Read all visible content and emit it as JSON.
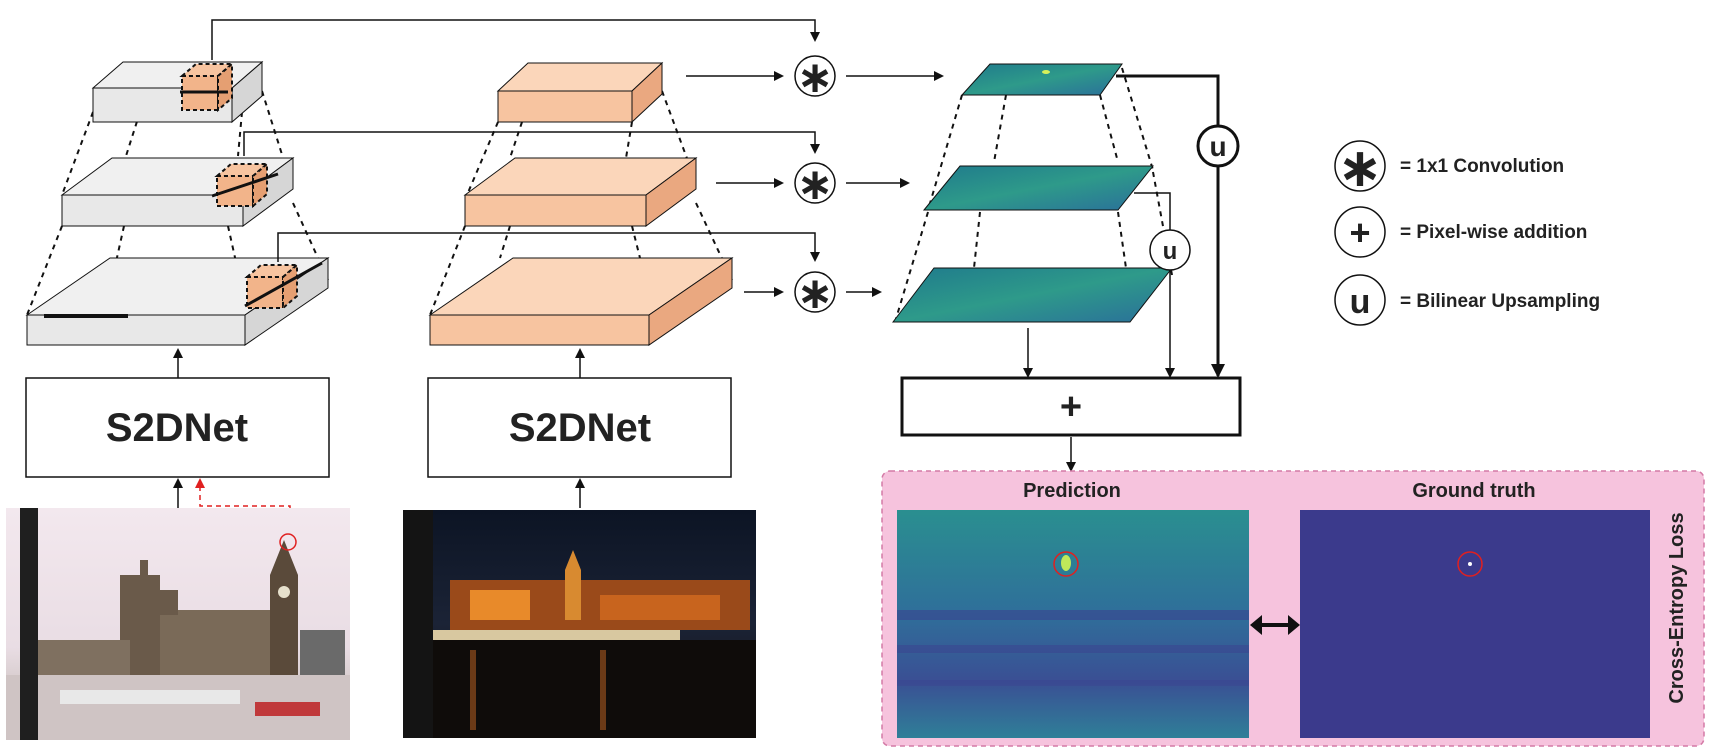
{
  "networks": [
    {
      "label": "S2DNet"
    },
    {
      "label": "S2DNet"
    }
  ],
  "symbols": {
    "conv": "∗",
    "add": "+",
    "upsample": "u"
  },
  "fusion_label": "+",
  "legend": [
    {
      "symbol": "∗",
      "name": "conv-legend",
      "text": "= 1x1 Convolution"
    },
    {
      "symbol": "+",
      "name": "add-legend",
      "text": "= Pixel-wise addition"
    },
    {
      "symbol": "u",
      "name": "upsample-legend",
      "text": "= Bilinear Upsampling"
    }
  ],
  "loss_panel": {
    "prediction_title": "Prediction",
    "ground_truth_title": "Ground truth",
    "loss_label": "Cross-Entropy Loss"
  },
  "colors": {
    "frozen_block": "#e8e8e8",
    "trainable_block": "#f7c4a0",
    "feature_map": "#2b8a8c",
    "ground_truth": "#3b3a8c",
    "loss_panel": "#f6c3dd",
    "query_arrow": "#e02020"
  }
}
